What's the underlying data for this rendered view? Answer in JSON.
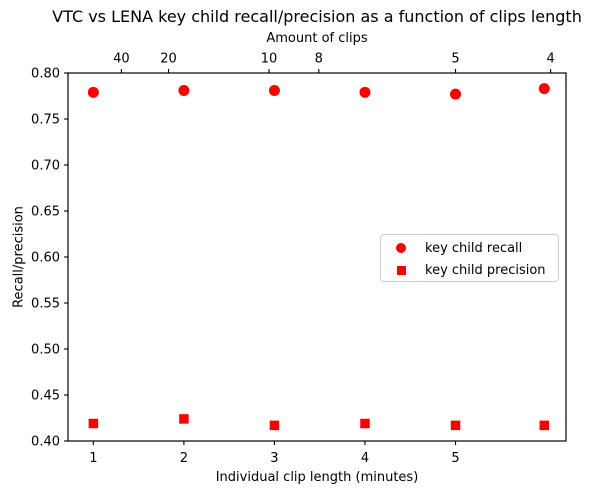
{
  "figure": {
    "background": "#ffffff",
    "text_color": "#000000",
    "axis_color": "#000000",
    "legend_border_color": "#cccccc"
  },
  "chart_data": {
    "type": "scatter",
    "title": "VTC vs LENA key child recall/precision as a function of clips length",
    "xlabel": "Individual clip length (minutes)",
    "ylabel": "Recall/precision",
    "top_axis_label": "Amount of clips",
    "xlim": [
      0.72,
      6.22
    ],
    "ylim": [
      0.4,
      0.8
    ],
    "x_ticks": [
      1,
      2,
      3,
      4,
      5
    ],
    "y_ticks": [
      0.4,
      0.45,
      0.5,
      0.55,
      0.6,
      0.65,
      0.7,
      0.75,
      0.8
    ],
    "top_ticks": [
      {
        "label": "40",
        "x": 1.31
      },
      {
        "label": "20",
        "x": 1.83
      },
      {
        "label": "10",
        "x": 2.94
      },
      {
        "label": "8",
        "x": 3.49
      },
      {
        "label": "5",
        "x": 5.0
      },
      {
        "label": "4",
        "x": 6.05
      }
    ],
    "grid": false,
    "marker_color": "#ff0000",
    "series": [
      {
        "name": "key child recall",
        "marker": "circle",
        "x": [
          1,
          2,
          3,
          4,
          5,
          5.98
        ],
        "y": [
          0.779,
          0.781,
          0.781,
          0.779,
          0.777,
          0.783
        ]
      },
      {
        "name": "key child precision",
        "marker": "square",
        "x": [
          1,
          2,
          3,
          4,
          5,
          5.98
        ],
        "y": [
          0.419,
          0.424,
          0.417,
          0.419,
          0.417,
          0.417
        ]
      }
    ],
    "legend": {
      "position": "center-right",
      "entries": [
        {
          "label": "key child recall",
          "marker": "circle"
        },
        {
          "label": "key child precision",
          "marker": "square"
        }
      ]
    }
  }
}
